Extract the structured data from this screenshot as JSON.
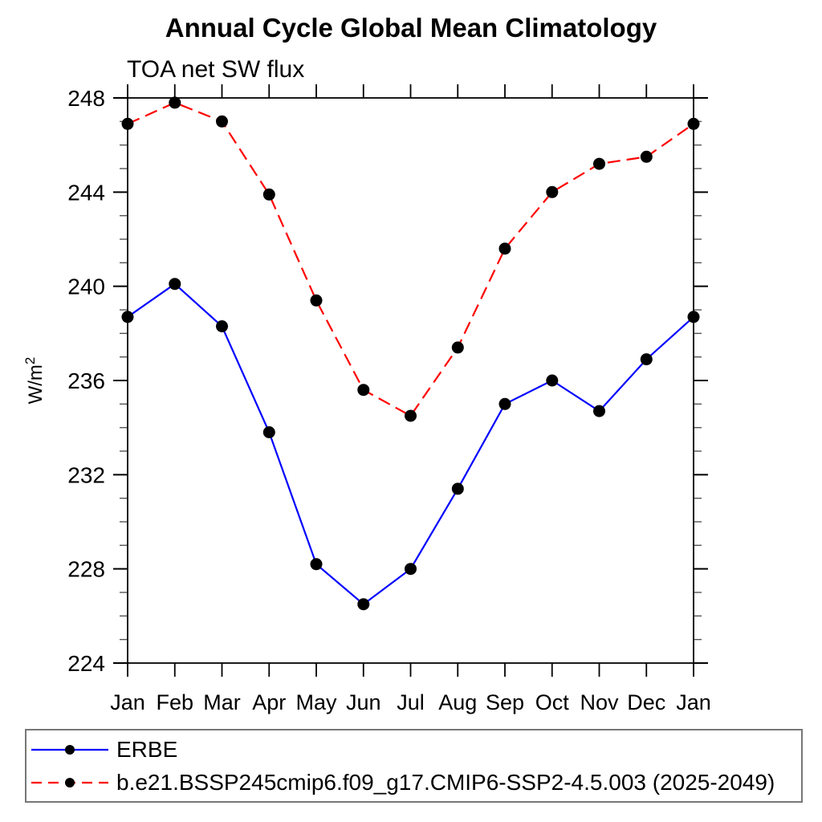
{
  "chart_data": {
    "type": "line",
    "title": "Annual Cycle Global Mean Climatology",
    "subtitle": "TOA net SW flux",
    "ylabel_base": "W/m",
    "ylabel_exponent": "2",
    "categories": [
      "Jan",
      "Feb",
      "Mar",
      "Apr",
      "May",
      "Jun",
      "Jul",
      "Aug",
      "Sep",
      "Oct",
      "Nov",
      "Dec",
      "Jan"
    ],
    "ylim": [
      224,
      248
    ],
    "ytick_major_interval": 4,
    "ytick_minor_interval": 1,
    "ytick_major_labels": [
      "224",
      "228",
      "232",
      "236",
      "240",
      "244",
      "248"
    ],
    "grid": false,
    "legend_position": "bottom",
    "axis_color": "#000000",
    "marker_color": "#000000",
    "series": [
      {
        "name": "ERBE",
        "color": "#0000ff",
        "line_style": "solid",
        "marker": "filled-circle",
        "values": [
          238.7,
          240.1,
          238.3,
          233.8,
          228.2,
          226.5,
          228.0,
          231.4,
          235.0,
          236.0,
          234.7,
          236.9,
          238.7
        ]
      },
      {
        "name": "b.e21.BSSP245cmip6.f09_g17.CMIP6-SSP2-4.5.003 (2025-2049)",
        "color": "#ff0000",
        "line_style": "dashed",
        "marker": "filled-circle",
        "values": [
          246.9,
          247.8,
          247.0,
          243.9,
          239.4,
          235.6,
          234.5,
          237.4,
          241.6,
          244.0,
          245.2,
          245.5,
          246.9
        ]
      }
    ]
  }
}
